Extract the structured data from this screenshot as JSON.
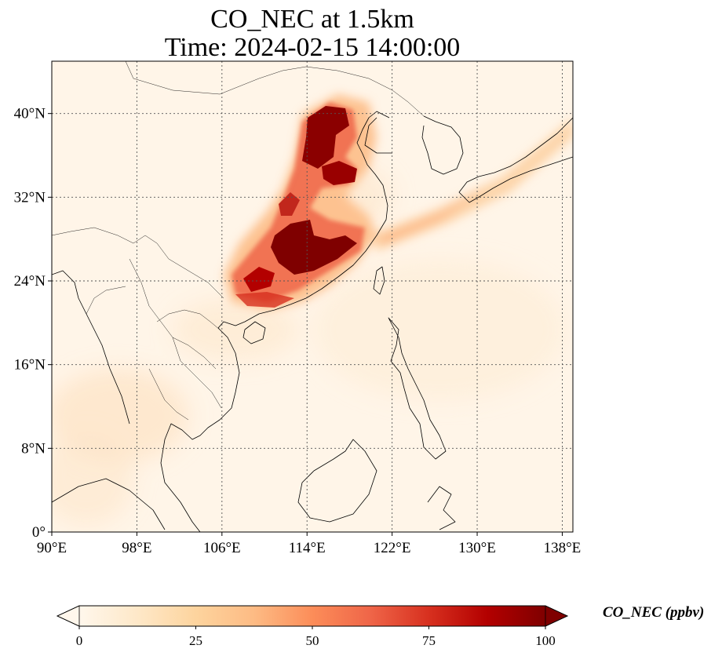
{
  "title": {
    "line1": "CO_NEC at 1.5km",
    "line2": "Time: 2024-02-15 14:00:00"
  },
  "map": {
    "extent": {
      "lon_min": 90,
      "lon_max": 139,
      "lat_min": 0,
      "lat_max": 45
    },
    "projection": "PlateCarree",
    "gridlines": "dotted",
    "lon_ticks": [
      {
        "value": 90,
        "label": "90°E"
      },
      {
        "value": 98,
        "label": "98°E"
      },
      {
        "value": 106,
        "label": "106°E"
      },
      {
        "value": 114,
        "label": "114°E"
      },
      {
        "value": 122,
        "label": "122°E"
      },
      {
        "value": 130,
        "label": "130°E"
      },
      {
        "value": 138,
        "label": "138°E"
      }
    ],
    "lat_ticks": [
      {
        "value": 0,
        "label": "0°"
      },
      {
        "value": 8,
        "label": "8°N"
      },
      {
        "value": 16,
        "label": "16°N"
      },
      {
        "value": 24,
        "label": "24°N"
      },
      {
        "value": 32,
        "label": "32°N"
      },
      {
        "value": 40,
        "label": "40°N"
      }
    ]
  },
  "colorbar": {
    "label": "CO_NEC (ppbv)",
    "colormap": "OrRd",
    "extend": "both",
    "vmin": 0,
    "vmax": 100,
    "ticks": [
      {
        "value": 0,
        "label": "0"
      },
      {
        "value": 25,
        "label": "25"
      },
      {
        "value": 50,
        "label": "50"
      },
      {
        "value": 75,
        "label": "75"
      },
      {
        "value": 100,
        "label": "100"
      }
    ],
    "colors": [
      "#fff7ec",
      "#fee8c8",
      "#fdd49e",
      "#fdbb84",
      "#fc8d59",
      "#ef6548",
      "#d7301f",
      "#b30000",
      "#7f0000"
    ]
  }
}
